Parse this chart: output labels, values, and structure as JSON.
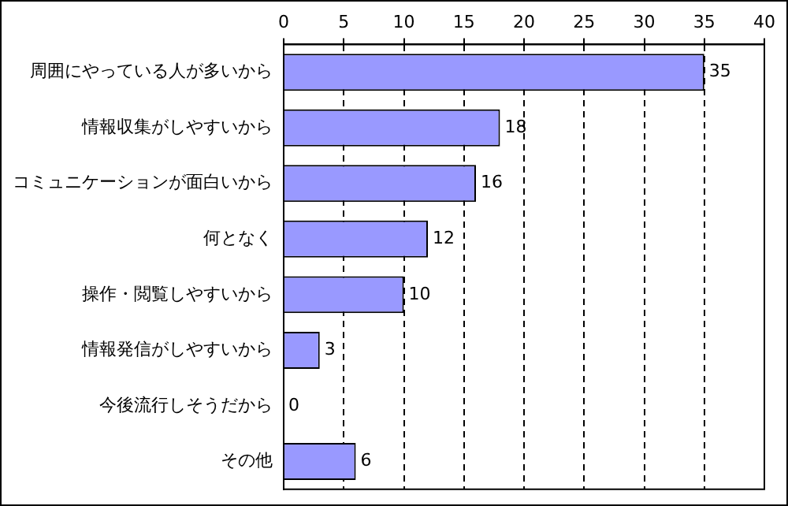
{
  "chart_data": {
    "type": "bar",
    "orientation": "horizontal",
    "categories": [
      "周囲にやっている人が多いから",
      "情報収集がしやすいから",
      "コミュニケーションが面白いから",
      "何となく",
      "操作・閲覧しやすいから",
      "情報発信がしやすいから",
      "今後流行しそうだから",
      "その他"
    ],
    "values": [
      35,
      18,
      16,
      12,
      10,
      3,
      0,
      6
    ],
    "color": "#9999ff",
    "xlim": [
      0,
      40
    ],
    "xticks": [
      0,
      5,
      10,
      15,
      20,
      25,
      30,
      35,
      40
    ],
    "grid": "x",
    "line_style": "dashed",
    "data_labels": true,
    "legend": false
  }
}
